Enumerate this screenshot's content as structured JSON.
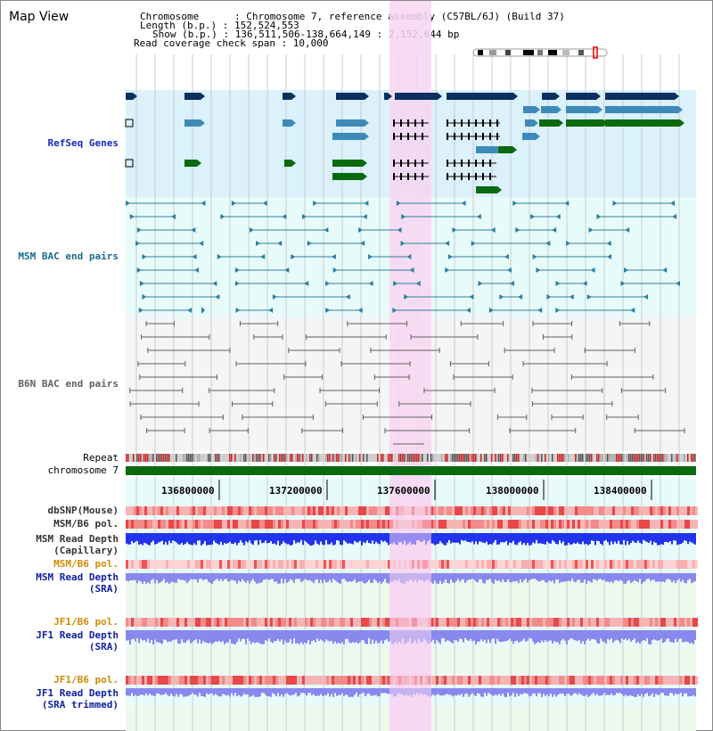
{
  "title": "Map View",
  "info": {
    "chromosome": "Chromosome      : Chromosome 7, reference assembly (C57BL/6J) (Build 37)",
    "length": "Length (b.p.) : 152,524,553",
    "show": "Show (b.p.) : 136,511,506-138,664,149 : 2,152,644 bp",
    "coverage": "Read coverage check span : 10,000"
  },
  "tracks": {
    "refseq": "RefSeq Genes",
    "msm_bac": "MSM BAC end pairs",
    "b6n_bac": "B6N BAC end pairs",
    "repeat": "Repeat",
    "chromosome": "chromosome 7",
    "dbsnp": "dbSNP(Mouse)",
    "msm_b6_pol_1": "MSM/B6 pol.",
    "msm_read_depth_cap_1": "MSM Read Depth",
    "msm_read_depth_cap_2": "(Capillary)",
    "msm_b6_pol_2": "MSM/B6 pol.",
    "msm_read_depth_sra_1": "MSM Read Depth",
    "msm_read_depth_sra_2": "(SRA)",
    "jf1_b6_pol_1": "JF1/B6 pol.",
    "jf1_read_depth_1": "JF1 Read Depth",
    "jf1_read_depth_2": "(SRA)",
    "jf1_b6_pol_2": "JF1/B6 pol.",
    "jf1_read_depth_trim_1": "JF1 Read Depth",
    "jf1_read_depth_trim_2": "(SRA trimmed)"
  },
  "axis": {
    "ticks": [
      "136800000",
      "137200000",
      "137600000",
      "138000000",
      "138400000"
    ]
  },
  "colors": {
    "refseq_bg": "#dbf1fb",
    "bac_bg": "#e8fbfb",
    "highlight": "#f7d6f2",
    "gene_dark": "#0a2f60",
    "gene_mid": "#3d8ab8",
    "gene_green": "#0a6a10",
    "msm_bac": "#2b7fa0",
    "b6n_bac": "#606060",
    "chrom_green": "#0a6a10",
    "depth_blue": "#2233ee",
    "depth_light": "#8888ee"
  }
}
